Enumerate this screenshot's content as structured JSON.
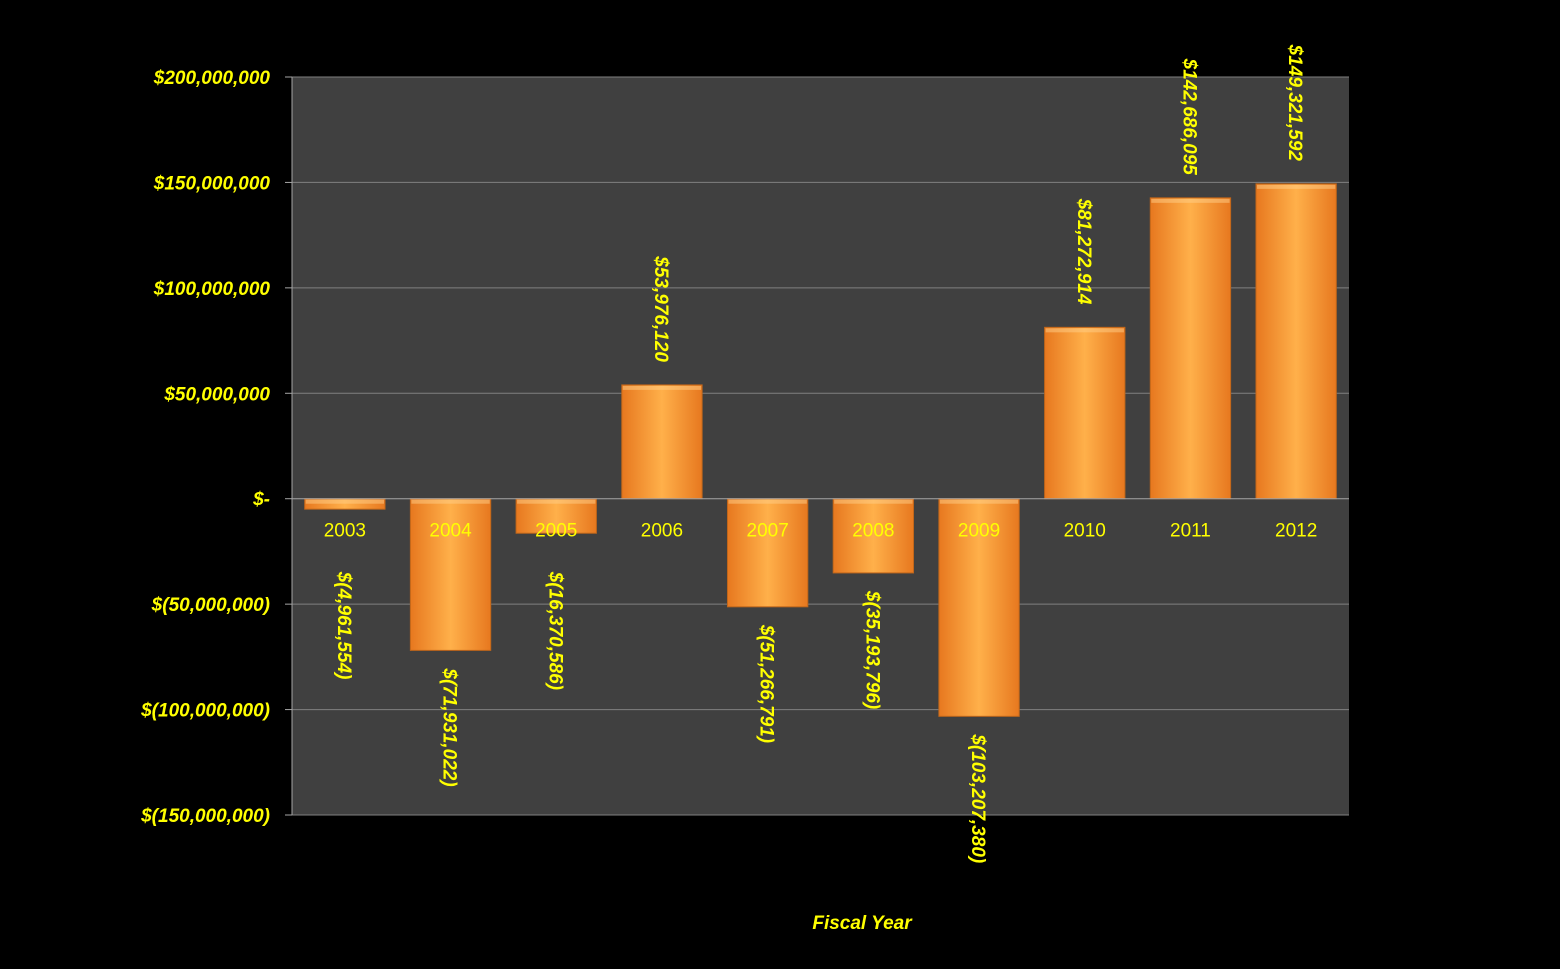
{
  "colors": {
    "background": "#000000",
    "plot_area": "#404040",
    "gridline": "#808080",
    "axis": "#a6a6a6",
    "label_text": "#ffff00",
    "bar_light": "#ffb04a",
    "bar_dark": "#e7781f"
  },
  "chart_data": {
    "type": "bar",
    "title": "",
    "xlabel": "Fiscal Year",
    "ylabel": "",
    "categories": [
      "2003",
      "2004",
      "2005",
      "2006",
      "2007",
      "2008",
      "2009",
      "2010",
      "2011",
      "2012"
    ],
    "values": [
      -4961554,
      -71931022,
      -16370586,
      53976120,
      -51266791,
      -35193796,
      -103207380,
      81272914,
      142686095,
      149321592
    ],
    "data_labels": [
      "$(4,961,554)",
      "$(71,931,022)",
      "$(16,370,586)",
      "$53,976,120",
      "$(51,266,791)",
      "$(35,193,796)",
      "$(103,207,380)",
      "$81,272,914",
      "$142,686,095",
      "$149,321,592"
    ],
    "ylim": [
      -150000000,
      200000000
    ],
    "y_ticks": [
      200000000,
      150000000,
      100000000,
      50000000,
      0,
      -50000000,
      -100000000,
      -150000000
    ],
    "y_tick_labels": [
      "$200,000,000",
      "$150,000,000",
      "$100,000,000",
      "$50,000,000",
      "$-",
      "$(50,000,000)",
      "$(100,000,000)",
      "$(150,000,000)"
    ],
    "grid": true,
    "legend": "none"
  }
}
